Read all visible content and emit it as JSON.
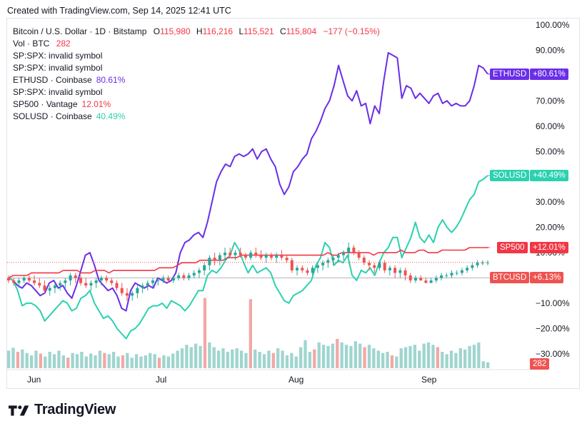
{
  "header": {
    "created": "Created with TradingView.com, Sep 14, 2025 12:41 UTC"
  },
  "brand": {
    "name": "TradingView"
  },
  "legend": {
    "main": {
      "label": "Bitcoin / U.S. Dollar · 1D · Bitstamp",
      "o_label": "O",
      "o": "115,980",
      "h_label": "H",
      "h": "116,216",
      "l_label": "L",
      "l": "115,521",
      "c_label": "C",
      "c": "115,804",
      "chg": "−177 (−0.15%)"
    },
    "vol": {
      "label": "Vol · BTC",
      "value": "282"
    },
    "rows": [
      {
        "label": "SP:SPX: invalid symbol",
        "value": ""
      },
      {
        "label": "SP:SPX: invalid symbol",
        "value": ""
      },
      {
        "label": "ETHUSD · Coinbase",
        "value": "80.61%",
        "color": "#6a2ee8"
      },
      {
        "label": "SP:SPX: invalid symbol",
        "value": ""
      },
      {
        "label": "SP500 · Vantage",
        "value": "12.01%",
        "color": "#f23645"
      },
      {
        "label": "SOLUSD · Coinbase",
        "value": "40.49%",
        "color": "#2bd1b0"
      }
    ]
  },
  "colors": {
    "eth": "#6a2ee8",
    "sol": "#2bd1b0",
    "sp500": "#f23645",
    "up": "#26a69a",
    "down": "#ef5350",
    "vol_up": "#9fd5cf",
    "vol_down": "#f3a7a6"
  },
  "chart_data": {
    "type": "line",
    "y_unit": "percent",
    "ylim": [
      -30,
      100
    ],
    "y_ticks": [
      "100.00%",
      "90.00%",
      "80.00%",
      "70.00%",
      "60.00%",
      "50.00%",
      "40.00%",
      "30.00%",
      "20.00%",
      "10.00%",
      "0.00%",
      "−10.00%",
      "−20.00%",
      "−30.00%"
    ],
    "x_ticks": [
      "Jun",
      "Jul",
      "Aug",
      "Sep"
    ],
    "x_range": [
      "2025-05-30",
      "2025-09-14"
    ],
    "grid": false,
    "series": [
      {
        "name": "ETHUSD",
        "tag": "ETHUSD",
        "tag_value": "+80.61%",
        "values": [
          0,
          -1,
          -3,
          -4,
          -2,
          -3,
          -5,
          -7,
          -6,
          -2,
          -1,
          -4,
          -3,
          -6,
          -8,
          -3,
          3,
          9,
          10,
          5,
          -1,
          -3,
          -5,
          -4,
          -7,
          -12,
          -13,
          -5,
          -2,
          -3,
          -4,
          -3,
          -4,
          0,
          -1,
          -2,
          -1,
          2,
          10,
          14,
          15,
          17,
          18,
          16,
          22,
          30,
          38,
          42,
          45,
          44,
          48,
          49,
          48,
          49,
          51,
          47,
          50,
          51,
          47,
          44,
          37,
          33,
          36,
          42,
          44,
          47,
          49,
          55,
          58,
          62,
          67,
          70,
          76,
          84,
          78,
          72,
          70,
          74,
          68,
          69,
          61,
          68,
          65,
          78,
          89,
          88,
          87,
          71,
          76,
          75,
          71,
          73,
          71,
          69,
          72,
          73,
          69,
          70,
          68,
          69,
          68,
          68,
          70,
          76,
          84,
          83,
          80.61
        ]
      },
      {
        "name": "SOLUSD",
        "tag": "SOLUSD",
        "tag_value": "+40.49%",
        "values": [
          0,
          -1,
          -5,
          -11,
          -10,
          -10,
          -11,
          -13,
          -17,
          -15,
          -13,
          -11,
          -9,
          -10,
          -13,
          -12,
          -8,
          -7,
          -5,
          -10,
          -13,
          -16,
          -15,
          -17,
          -20,
          -22,
          -24,
          -21,
          -20,
          -18,
          -15,
          -12,
          -11,
          -11,
          -10,
          -12,
          -9,
          -10,
          -11,
          -13,
          -11,
          -8,
          -5,
          -5,
          1,
          3,
          2,
          4,
          7,
          9,
          14,
          11,
          6,
          2,
          5,
          2,
          3,
          4,
          2,
          -3,
          -6,
          -9,
          -10,
          -7,
          -6,
          -5,
          -3,
          -1,
          5,
          8,
          14,
          12,
          5,
          7,
          6,
          9,
          1,
          -1,
          3,
          2,
          4,
          1,
          6,
          10,
          12,
          16,
          16,
          8,
          12,
          16,
          22,
          16,
          14,
          17,
          14,
          20,
          23,
          20,
          18,
          20,
          23,
          27,
          31,
          33,
          38,
          39,
          40.49
        ]
      },
      {
        "name": "SP500",
        "tag": "SP500",
        "tag_value": "+12.01%",
        "values": [
          0,
          1,
          1,
          1,
          1,
          2,
          2,
          2,
          2,
          2,
          2,
          2,
          3,
          3,
          3,
          3,
          2,
          2,
          2,
          3,
          3,
          3,
          2,
          3,
          3,
          3,
          3,
          3,
          3,
          3,
          3,
          3,
          3,
          4,
          4,
          4,
          4,
          5,
          6,
          6,
          6,
          6,
          7,
          7,
          7,
          7,
          7,
          7,
          8,
          8,
          8,
          9,
          9,
          9,
          9,
          9,
          9,
          9,
          9,
          9,
          9,
          9,
          9,
          9,
          9,
          9,
          9,
          9,
          9,
          9,
          10,
          9,
          9,
          10,
          10,
          10,
          10,
          10,
          10,
          10,
          9,
          10,
          10,
          10,
          10,
          10,
          11,
          10,
          10,
          10,
          11,
          11,
          10,
          10,
          10,
          11,
          11,
          11,
          11,
          11,
          11,
          12,
          12,
          12,
          12,
          12.01
        ]
      }
    ],
    "btc": {
      "name": "BTCUSD",
      "tag": "BTCUSD",
      "tag_value": "+6.13%",
      "last_value": 6.13,
      "ohlc": [
        [
          0,
          1,
          -2,
          -1
        ],
        [
          -1,
          0,
          -3,
          -2
        ],
        [
          -2,
          0,
          -4,
          -1
        ],
        [
          -1,
          1,
          -2,
          0
        ],
        [
          0,
          1,
          -2,
          -1
        ],
        [
          -1,
          1,
          -3,
          -2
        ],
        [
          -2,
          0,
          -4,
          -3
        ],
        [
          -3,
          -1,
          -6,
          -5
        ],
        [
          -5,
          -3,
          -7,
          -4
        ],
        [
          -4,
          -2,
          -6,
          -3
        ],
        [
          -3,
          -1,
          -5,
          -2
        ],
        [
          -2,
          0,
          -4,
          -1
        ],
        [
          -1,
          2,
          -3,
          1
        ],
        [
          1,
          2,
          -2,
          0
        ],
        [
          0,
          1,
          -3,
          -2
        ],
        [
          -2,
          0,
          -4,
          -3
        ],
        [
          -3,
          -1,
          -5,
          -2
        ],
        [
          -2,
          0,
          -4,
          -1
        ],
        [
          -1,
          1,
          -3,
          0
        ],
        [
          0,
          1,
          -2,
          -1
        ],
        [
          -1,
          0,
          -3,
          -2
        ],
        [
          -2,
          -1,
          -5,
          -4
        ],
        [
          -4,
          -2,
          -7,
          -6
        ],
        [
          -6,
          -4,
          -9,
          -7
        ],
        [
          -7,
          -5,
          -9,
          -6
        ],
        [
          -6,
          -3,
          -8,
          -4
        ],
        [
          -4,
          -2,
          -6,
          -3
        ],
        [
          -3,
          -1,
          -5,
          -2
        ],
        [
          -2,
          0,
          -4,
          -1
        ],
        [
          -1,
          0,
          -3,
          -1
        ],
        [
          -1,
          1,
          -2,
          0
        ],
        [
          0,
          1,
          -2,
          -1
        ],
        [
          -1,
          1,
          -2,
          0
        ],
        [
          0,
          2,
          -1,
          1
        ],
        [
          1,
          2,
          -1,
          0
        ],
        [
          0,
          2,
          -1,
          1
        ],
        [
          1,
          3,
          0,
          2
        ],
        [
          2,
          4,
          0,
          3
        ],
        [
          3,
          6,
          1,
          5
        ],
        [
          5,
          9,
          3,
          8
        ],
        [
          8,
          10,
          5,
          7
        ],
        [
          7,
          10,
          5,
          9
        ],
        [
          9,
          12,
          7,
          10
        ],
        [
          10,
          12,
          8,
          9
        ],
        [
          9,
          11,
          7,
          10
        ],
        [
          10,
          12,
          8,
          9
        ],
        [
          9,
          10,
          7,
          8
        ],
        [
          8,
          11,
          7,
          10
        ],
        [
          10,
          12,
          8,
          9
        ],
        [
          9,
          11,
          7,
          8
        ],
        [
          8,
          10,
          6,
          9
        ],
        [
          9,
          10,
          7,
          8
        ],
        [
          8,
          10,
          6,
          9
        ],
        [
          9,
          11,
          7,
          8
        ],
        [
          8,
          9,
          6,
          7
        ],
        [
          7,
          8,
          2,
          3
        ],
        [
          3,
          5,
          1,
          4
        ],
        [
          4,
          5,
          2,
          3
        ],
        [
          3,
          4,
          1,
          2
        ],
        [
          2,
          5,
          1,
          4
        ],
        [
          4,
          6,
          2,
          5
        ],
        [
          5,
          7,
          3,
          6
        ],
        [
          6,
          8,
          4,
          7
        ],
        [
          7,
          9,
          5,
          8
        ],
        [
          8,
          10,
          6,
          9
        ],
        [
          9,
          11,
          7,
          10
        ],
        [
          10,
          14,
          8,
          12
        ],
        [
          12,
          13,
          9,
          10
        ],
        [
          10,
          11,
          7,
          8
        ],
        [
          8,
          9,
          5,
          6
        ],
        [
          6,
          7,
          3,
          5
        ],
        [
          5,
          6,
          2,
          4
        ],
        [
          4,
          7,
          3,
          6
        ],
        [
          6,
          7,
          2,
          3
        ],
        [
          3,
          5,
          1,
          4
        ],
        [
          4,
          5,
          0,
          2
        ],
        [
          2,
          4,
          0,
          3
        ],
        [
          3,
          4,
          -1,
          1
        ],
        [
          1,
          2,
          -2,
          -1
        ],
        [
          -1,
          1,
          -2,
          0
        ],
        [
          0,
          1,
          -1,
          -1
        ],
        [
          -1,
          0,
          -2,
          -2
        ],
        [
          -2,
          0,
          -2,
          -1
        ],
        [
          -1,
          1,
          -2,
          0
        ],
        [
          0,
          2,
          -1,
          1
        ],
        [
          1,
          2,
          0,
          1
        ],
        [
          1,
          3,
          0,
          2
        ],
        [
          2,
          3,
          1,
          2
        ],
        [
          2,
          4,
          1,
          3
        ],
        [
          3,
          5,
          2,
          4
        ],
        [
          4,
          6,
          3,
          5
        ],
        [
          5,
          7,
          4,
          6
        ],
        [
          6,
          7,
          5,
          6
        ],
        [
          6,
          7,
          5,
          6.13
        ]
      ]
    },
    "volume": {
      "name": "Vol · BTC",
      "tag_value": "282",
      "values": [
        30,
        35,
        28,
        32,
        26,
        22,
        30,
        25,
        20,
        28,
        24,
        30,
        22,
        18,
        26,
        24,
        28,
        20,
        25,
        22,
        30,
        26,
        24,
        28,
        20,
        22,
        26,
        18,
        24,
        20,
        22,
        26,
        24,
        18,
        22,
        20,
        25,
        30,
        34,
        40,
        36,
        42,
        38,
        120,
        44,
        36,
        30,
        34,
        28,
        32,
        34,
        30,
        26,
        118,
        32,
        28,
        24,
        30,
        26,
        34,
        30,
        22,
        26,
        20,
        36,
        48,
        28,
        32,
        44,
        40,
        38,
        42,
        50,
        44,
        40,
        38,
        46,
        42,
        36,
        40,
        34,
        30,
        26,
        28,
        22,
        20,
        34,
        36,
        38,
        40,
        30,
        42,
        44,
        40,
        36,
        28,
        24,
        30,
        26,
        34,
        32,
        38,
        40,
        44,
        12,
        10
      ],
      "down_idx": [
        2,
        7,
        13,
        21,
        25,
        33,
        43,
        53,
        58,
        67,
        72,
        78,
        84,
        94
      ]
    }
  }
}
